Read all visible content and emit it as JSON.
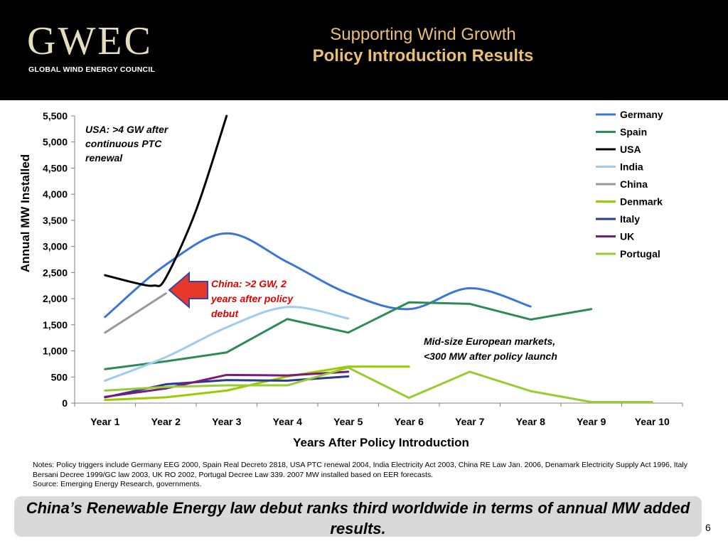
{
  "header": {
    "logo_main": "GWEC",
    "logo_sub": "GLOBAL WIND ENERGY COUNCIL",
    "title_line1": "Supporting Wind Growth",
    "title_line2": "Policy Introduction Results"
  },
  "colors": {
    "header_bg": "#000000",
    "title": "#e8c070",
    "annotation_red": "#e00000",
    "arrow_fill": "#e8382a",
    "arrow_stroke": "#3344aa"
  },
  "chart_data": {
    "type": "line",
    "xlabel": "Years After Policy Introduction",
    "ylabel": "Annual MW Installed",
    "categories": [
      "Year 1",
      "Year 2",
      "Year 3",
      "Year 4",
      "Year 5",
      "Year 6",
      "Year 7",
      "Year 8",
      "Year 9",
      "Year 10"
    ],
    "ylim": [
      0,
      5500
    ],
    "yticks": [
      0,
      500,
      1000,
      1500,
      2000,
      2500,
      3000,
      3500,
      4000,
      4500,
      5000,
      5500
    ],
    "ytick_labels": [
      "0",
      "500",
      "1,000",
      "1,500",
      "2,000",
      "2,500",
      "3,000",
      "3,500",
      "4,000",
      "4,500",
      "5,000",
      "5,500"
    ],
    "legend_position": "top-right",
    "series": [
      {
        "name": "Germany",
        "color": "#3a76d8",
        "smooth": true,
        "x": [
          1,
          2,
          3,
          4,
          5,
          6,
          7,
          8
        ],
        "values": [
          1650,
          2650,
          3250,
          2700,
          2100,
          1800,
          2200,
          1850
        ]
      },
      {
        "name": "Spain",
        "color": "#2e8b57",
        "smooth": false,
        "x": [
          1,
          2,
          3,
          4,
          5,
          6,
          7,
          8,
          9
        ],
        "values": [
          650,
          800,
          970,
          1610,
          1350,
          1930,
          1900,
          1600,
          1800
        ]
      },
      {
        "name": "USA",
        "color": "#000000",
        "smooth": true,
        "x": [
          1,
          1.5,
          1.8,
          2,
          2.5,
          3
        ],
        "values": [
          2450,
          2300,
          2250,
          2400,
          3700,
          5500
        ]
      },
      {
        "name": "India",
        "color": "#9ecbf0",
        "smooth": true,
        "x": [
          1,
          2,
          3,
          4,
          5
        ],
        "values": [
          430,
          880,
          1450,
          1840,
          1620
        ]
      },
      {
        "name": "China",
        "color": "#999999",
        "smooth": false,
        "x": [
          1,
          2
        ],
        "values": [
          1350,
          2100
        ]
      },
      {
        "name": "Denmark",
        "color": "#99cc00",
        "smooth": false,
        "x": [
          1,
          2,
          3,
          4,
          5,
          6
        ],
        "values": [
          60,
          110,
          240,
          510,
          700,
          700
        ]
      },
      {
        "name": "Italy",
        "color": "#2b3990",
        "smooth": false,
        "x": [
          1,
          2,
          3,
          4,
          5
        ],
        "values": [
          110,
          360,
          440,
          430,
          510
        ]
      },
      {
        "name": "UK",
        "color": "#7a1a7a",
        "smooth": false,
        "x": [
          1,
          2,
          3,
          4,
          5
        ],
        "values": [
          120,
          280,
          540,
          530,
          600
        ]
      },
      {
        "name": "Portugal",
        "color": "#99cc33",
        "smooth": false,
        "x": [
          1,
          2,
          3,
          4,
          5,
          6,
          7,
          8,
          9,
          10
        ],
        "values": [
          240,
          310,
          340,
          340,
          680,
          100,
          600,
          230,
          20,
          20
        ]
      }
    ],
    "annotations": {
      "usa": "USA: >4 GW after continuous PTC renewal",
      "china": "China: >2 GW, 2 years after policy debut",
      "europe": "Mid-size European markets, <300 MW after policy launch"
    }
  },
  "footer": {
    "notes_line1": "Notes: Policy triggers include Germany EEG 2000, Spain Real Decreto 2818, USA PTC renewal 2004, India Electricity Act 2003, China RE Law Jan. 2006, Denamark Electricity Supply Act 1996, Italy Bersani Decree 1999/GC law 2003, UK RO 2002, Portugal Decree Law 339.  2007 MW installed based on EER forecasts.",
    "notes_line2": "Source: Emerging Energy Research, governments.",
    "banner": "China’s Renewable Energy law debut ranks third worldwide in terms of annual MW added results.",
    "page_number": "6"
  }
}
